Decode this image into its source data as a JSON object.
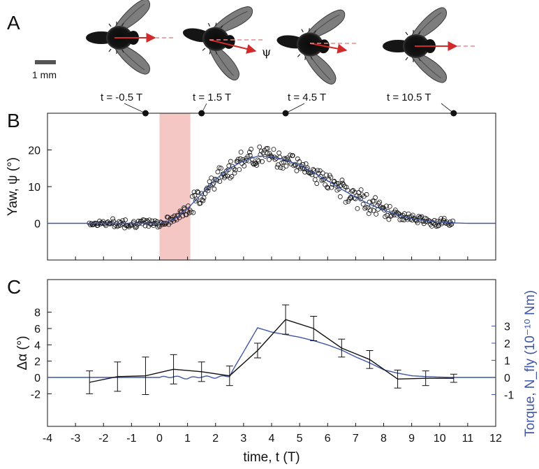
{
  "panels": {
    "a": "A",
    "b": "B",
    "c": "C"
  },
  "panel_a": {
    "scale_bar_label": "1 mm",
    "psi_label": "ψ",
    "time_labels": [
      "t = -0.5 T",
      "t = 1.5 T",
      "t = 4.5 T",
      "t = 10.5 T"
    ],
    "snapshots": [
      {
        "angle_deg": 0,
        "time_T": -0.5
      },
      {
        "angle_deg": 18,
        "time_T": 1.5
      },
      {
        "angle_deg": 12,
        "time_T": 4.5
      },
      {
        "angle_deg": -2,
        "time_T": 10.5
      }
    ]
  },
  "colors": {
    "model_curve": "#3f57a5",
    "arrow": "#d12a2a",
    "dashed_reference": "#ea8a8a",
    "stimulus_band": "#f4c6c4"
  },
  "chart_data": [
    {
      "type": "scatter",
      "ylabel": "Yaw, ψ (°)",
      "xlim": [
        -4,
        12
      ],
      "ylim": [
        -10,
        30
      ],
      "yticks": [
        0,
        10,
        20
      ],
      "stimulus_window": [
        0,
        1.1
      ],
      "marked_times": [
        -0.5,
        1.5,
        4.5,
        10.5
      ],
      "model_curve": {
        "x": [
          -4,
          -1,
          0,
          0.5,
          1,
          1.5,
          2,
          2.5,
          3,
          3.5,
          4,
          4.5,
          5,
          5.5,
          6,
          6.5,
          7,
          7.5,
          8,
          8.5,
          9,
          9.5,
          10,
          10.5,
          11,
          11.5,
          12
        ],
        "y": [
          0,
          0,
          0,
          1,
          4,
          8,
          12,
          15,
          17,
          18.3,
          18.2,
          17.3,
          15.8,
          13.8,
          11.6,
          9.3,
          7.1,
          5.2,
          3.6,
          2.3,
          1.3,
          0.7,
          0.3,
          0.1,
          0,
          0,
          0
        ]
      },
      "points_note": "≈400 individual ψ measurements scattered around the model curve from t = -2.5 T to 10.5 T"
    },
    {
      "type": "line",
      "xlabel": "time, t (T)",
      "ylabel": "Δα (°)",
      "ylabel_right": "Torque, N_fly (10⁻¹⁰ Nm)",
      "xlim": [
        -4,
        12
      ],
      "ylim": [
        -6,
        12
      ],
      "xticks": [
        -4,
        -3,
        -2,
        -1,
        0,
        1,
        2,
        3,
        4,
        5,
        6,
        7,
        8,
        9,
        10,
        11,
        12
      ],
      "yticks": [
        -2,
        0,
        2,
        4,
        6,
        8
      ],
      "yticks_right": [
        -1,
        0,
        1,
        2,
        3
      ],
      "series": [
        {
          "name": "Δα",
          "x": [
            -2.5,
            -1.5,
            -0.5,
            0.5,
            1.5,
            2.5,
            3.5,
            4.5,
            5.5,
            6.5,
            7.5,
            8.5,
            9.5,
            10.5
          ],
          "y": [
            -0.6,
            0.1,
            0.2,
            1.0,
            0.7,
            0.2,
            3.3,
            7.1,
            6.0,
            3.6,
            2.2,
            -0.2,
            -0.1,
            -0.1
          ],
          "err": [
            1.4,
            1.8,
            2.3,
            1.8,
            1.2,
            1.2,
            0.9,
            1.8,
            1.5,
            1.1,
            1.1,
            1.1,
            0.9,
            0.5
          ]
        },
        {
          "name": "Torque",
          "x": [
            -4,
            0,
            0.5,
            1,
            1.5,
            2,
            2.5,
            3,
            3.5,
            4,
            4.5,
            5,
            5.5,
            6,
            6.5,
            7,
            7.5,
            8,
            8.5,
            9,
            9.5,
            10,
            10.5,
            11,
            11.5,
            12
          ],
          "y": [
            0,
            0,
            0.05,
            -0.05,
            0.05,
            0,
            0.1,
            1.5,
            2.9,
            2.65,
            2.5,
            2.35,
            2.15,
            1.9,
            1.6,
            1.2,
            0.85,
            0.45,
            0.25,
            0.1,
            0.05,
            0.02,
            0,
            0,
            0,
            0
          ]
        }
      ]
    }
  ]
}
